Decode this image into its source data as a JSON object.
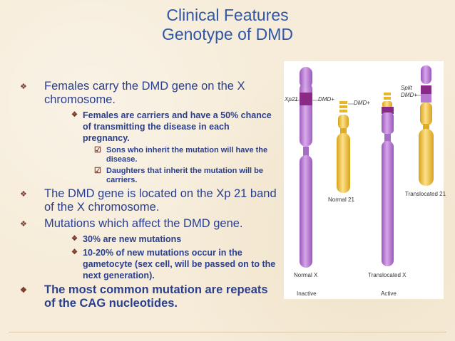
{
  "title": {
    "line1": "Clinical Features",
    "line2": "Genotype of DMD"
  },
  "bullets": {
    "b1": "Females carry the DMD gene on the X chromosome.",
    "b1_1": "Females are carriers and have a 50% chance of transmitting the disease in each pregnancy.",
    "b1_1_1": "Sons who inherit the mutation will have the disease.",
    "b1_1_2": "Daughters that inherit the mutation will be carriers.",
    "b2": "The DMD gene is located on the Xp 21 band of the X chromosome.",
    "b3": "Mutations which affect the DMD gene.",
    "b3_1": "30% are new mutations",
    "b3_2": "10-20% of new mutations occur in the gametocyte (sex cell, will be passed on to the next generation).",
    "b4": "The most common mutation are repeats of the CAG nucleotides."
  },
  "figure": {
    "xp21": "Xp21",
    "dmd1": "DMD+",
    "dmd2": "DMD+",
    "split": "Split",
    "dmd3": "DMD+",
    "normal21": "Normal 21",
    "translocated21": "Translocated 21",
    "normalx": "Normal X",
    "inactive": "Inactive",
    "translocatedx": "Translocated X",
    "active": "Active"
  },
  "colors": {
    "title": "#2f57a6",
    "text": "#2a3f8e",
    "bullet": "#7a3a2c",
    "x_chromosome": "#b67ad0",
    "band_dark": "#8a2a86",
    "chromosome_21": "#f1c23c"
  },
  "icons": {
    "level1": "diamond-bullet-icon",
    "level3": "check-box-bullet-icon"
  }
}
